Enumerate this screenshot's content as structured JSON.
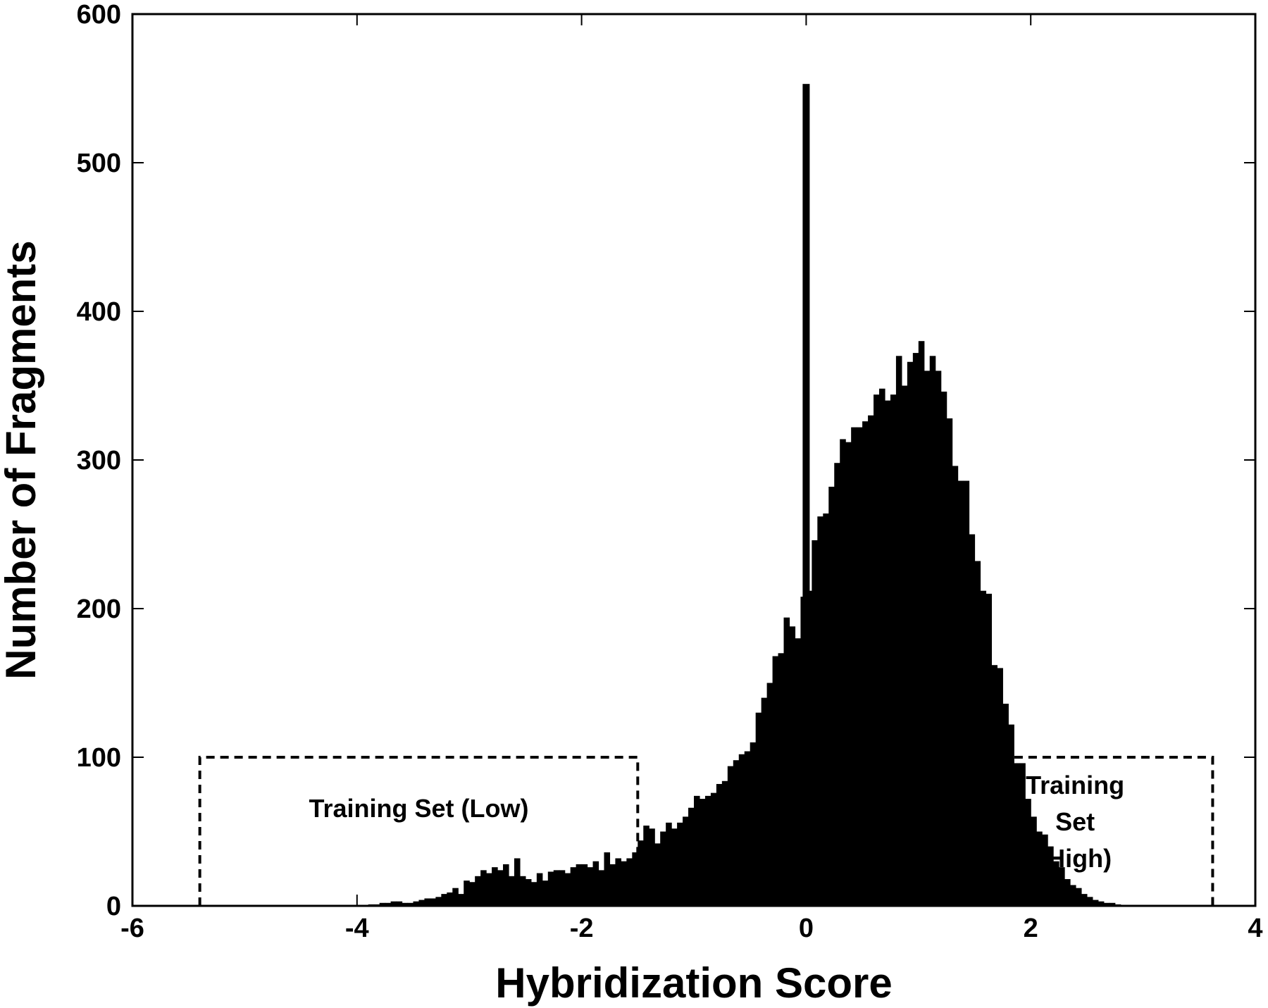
{
  "chart_data": {
    "type": "bar",
    "xlabel": "Hybridization Score",
    "ylabel": "Number of Fragments",
    "xlim": [
      -6,
      4
    ],
    "ylim": [
      0,
      600
    ],
    "xticks": [
      -6,
      -4,
      -2,
      0,
      2,
      4
    ],
    "yticks": [
      0,
      100,
      200,
      300,
      400,
      500,
      600
    ],
    "xtick_labels": [
      "-6",
      "-4",
      "-2",
      "0",
      "2",
      "4"
    ],
    "ytick_labels": [
      "0",
      "100",
      "200",
      "300",
      "400",
      "500",
      "600"
    ],
    "bin_start": -3.9,
    "bin_width": 0.05,
    "values": [
      1,
      1,
      2,
      2,
      3,
      3,
      2,
      2,
      3,
      4,
      5,
      5,
      6,
      8,
      9,
      12,
      8,
      17,
      16,
      20,
      24,
      22,
      26,
      24,
      28,
      20,
      32,
      20,
      18,
      16,
      22,
      17,
      23,
      24,
      24,
      22,
      26,
      28,
      28,
      26,
      30,
      24,
      36,
      28,
      32,
      30,
      32,
      36,
      44,
      54,
      52,
      42,
      50,
      56,
      52,
      56,
      60,
      66,
      74,
      72,
      74,
      76,
      82,
      84,
      94,
      98,
      102,
      104,
      110,
      130,
      140,
      150,
      168,
      170,
      194,
      188,
      180,
      208,
      212,
      246,
      262,
      264,
      282,
      298,
      314,
      312,
      322,
      322,
      326,
      330,
      344,
      348,
      340,
      344,
      370,
      350,
      366,
      372,
      380,
      360,
      370,
      360,
      346,
      328,
      296,
      286,
      286,
      250,
      232,
      212,
      210,
      162,
      160,
      136,
      122,
      96,
      96,
      72,
      60,
      50,
      48,
      40,
      30,
      26,
      18,
      14,
      12,
      8,
      6,
      4,
      3,
      2,
      2,
      1
    ],
    "spike": {
      "x": 0.0,
      "value": 553
    },
    "grid": false,
    "training_sets": [
      {
        "label": "Training Set (Low)",
        "x_range": [
          -5.4,
          -1.5
        ],
        "height": 100
      },
      {
        "label_lines": [
          "Training",
          "Set",
          "(High)"
        ],
        "x_range": [
          1.17,
          3.62
        ],
        "height": 100
      }
    ]
  }
}
